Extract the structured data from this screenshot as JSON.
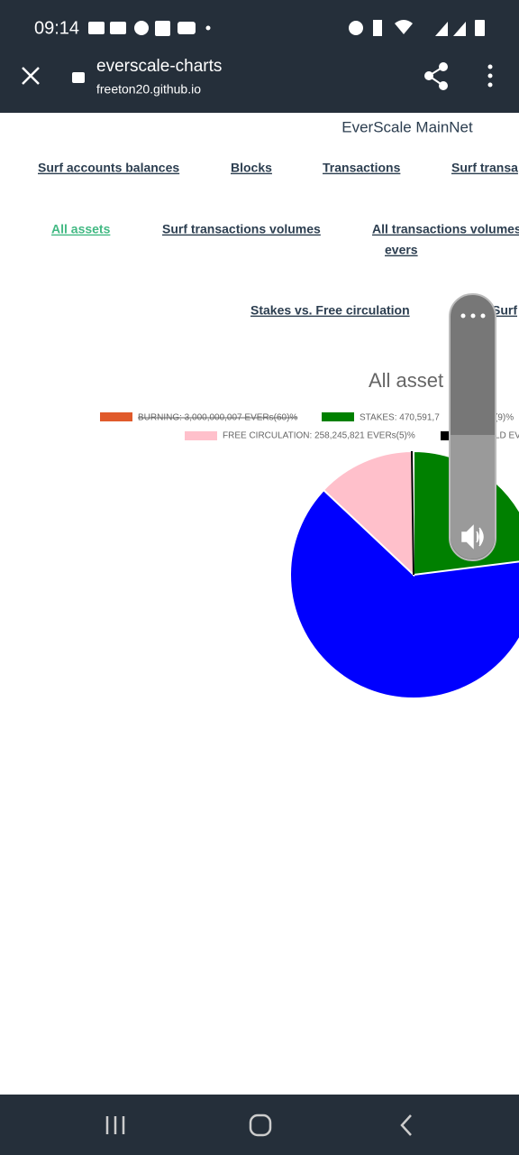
{
  "status_bar": {
    "time": "09:14"
  },
  "toolbar": {
    "title": "everscale-charts",
    "url": "freeton20.github.io"
  },
  "page": {
    "heading": "EverScale MainNet",
    "nav_row_1": [
      "Surf accounts balances",
      "Blocks",
      "Transactions",
      "Surf transa"
    ],
    "nav_row_2": [
      "All assets",
      "Surf transactions volumes",
      "All transactions volumes",
      "evers"
    ],
    "nav_row_3": [
      "Stakes vs. Free circulation",
      "Surf"
    ],
    "chart_title": "All asset",
    "legend": [
      "BURNING: 3,000,000,007 EVERs(60)%",
      "STAKES: 470,591,7",
      "(9)%",
      "FREE CIRCULATION: 258,245,821 EVERs(5)%",
      "LD EV"
    ]
  }
}
